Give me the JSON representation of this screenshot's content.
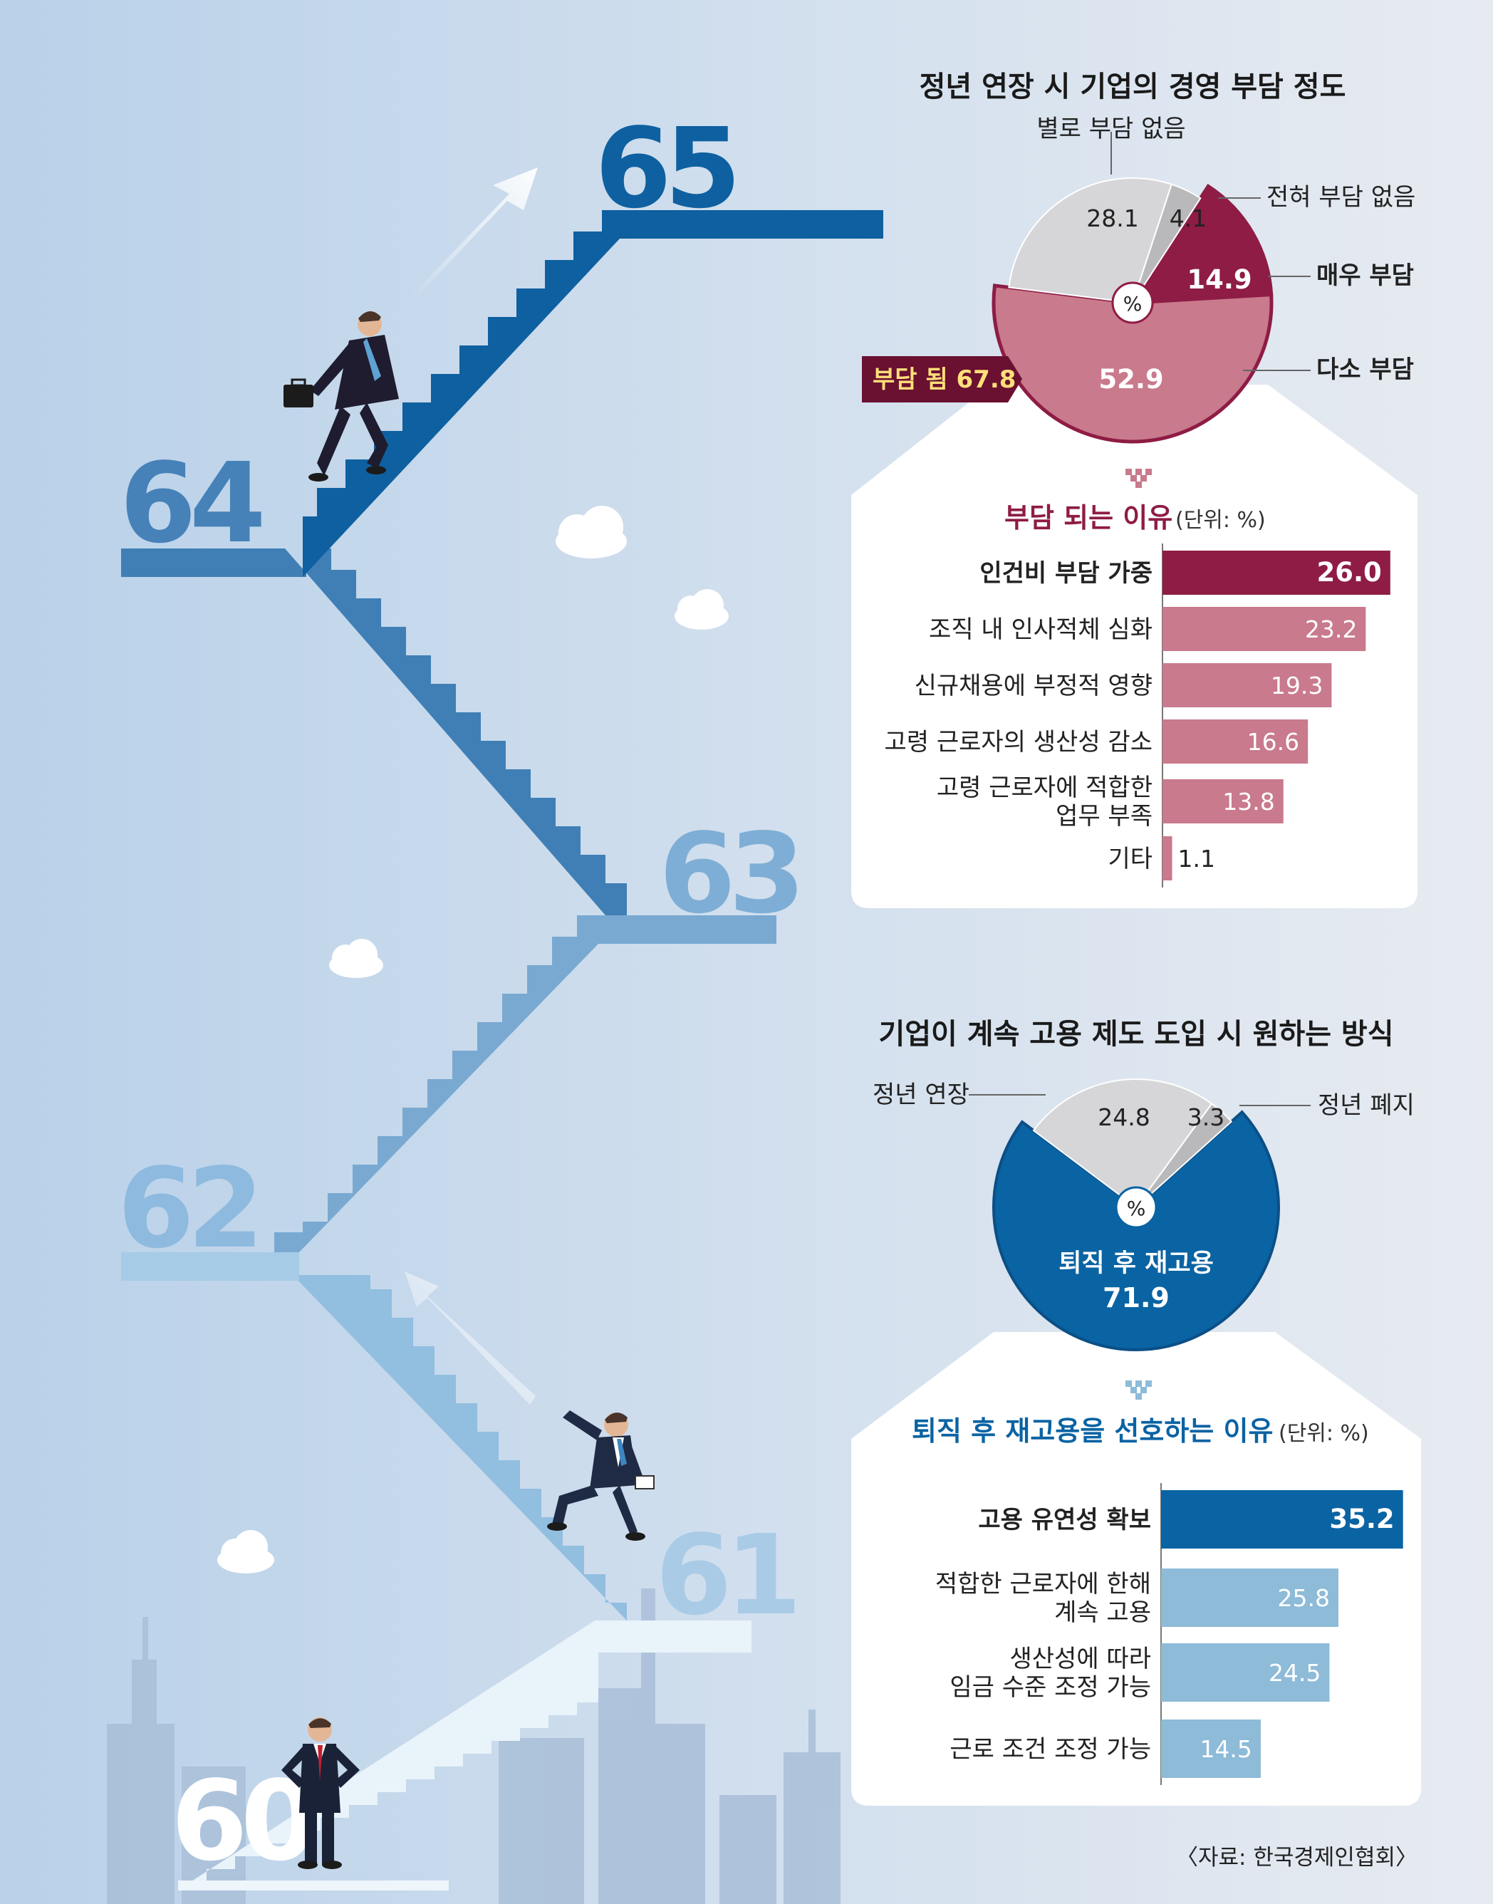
{
  "stair_labels": [
    "65",
    "64",
    "63",
    "62",
    "61",
    "60"
  ],
  "colors": {
    "burden": "#8e1c45",
    "burden_light": "#c97a8c",
    "gray": "#d6d6d8",
    "gray_dark": "#b9b9bb",
    "blue": "#0a63a3",
    "blue_light": "#8dbbd8"
  },
  "source": "〈자료: 한국경제인협회〉",
  "chart_data": [
    {
      "type": "pie",
      "title": "정년 연장 시 기업의 경영 부담 정도",
      "unit": "%",
      "slices": [
        {
          "label": "매우 부담",
          "value": 14.9
        },
        {
          "label": "다소 부담",
          "value": 52.9
        },
        {
          "label": "별로 부담 없음",
          "value": 28.1
        },
        {
          "label": "전혀 부담 없음",
          "value": 4.1
        }
      ],
      "callout": "부담 됨 67.8"
    },
    {
      "type": "bar",
      "title": "부담 되는 이유",
      "unit_note": "(단위: %)",
      "categories": [
        "인건비 부담 가중",
        "조직 내 인사적체 심화",
        "신규채용에 부정적 영향",
        "고령 근로자의 생산성 감소",
        "고령 근로자에 적합한\n업무 부족",
        "기타"
      ],
      "values": [
        26.0,
        23.2,
        19.3,
        16.6,
        13.8,
        1.1
      ]
    },
    {
      "type": "pie",
      "title": "기업이 계속 고용 제도 도입 시 원하는 방식",
      "unit": "%",
      "slices": [
        {
          "label": "퇴직 후 재고용",
          "value": 71.9
        },
        {
          "label": "정년 연장",
          "value": 24.8
        },
        {
          "label": "정년 폐지",
          "value": 3.3
        }
      ]
    },
    {
      "type": "bar",
      "title": "퇴직 후 재고용을 선호하는 이유",
      "unit_note": "(단위: %)",
      "categories": [
        "고용 유연성 확보",
        "적합한 근로자에 한해\n계속 고용",
        "생산성에 따라\n임금 수준 조정 가능",
        "근로 조건 조정 가능"
      ],
      "values": [
        35.2,
        25.8,
        24.5,
        14.5
      ]
    }
  ]
}
